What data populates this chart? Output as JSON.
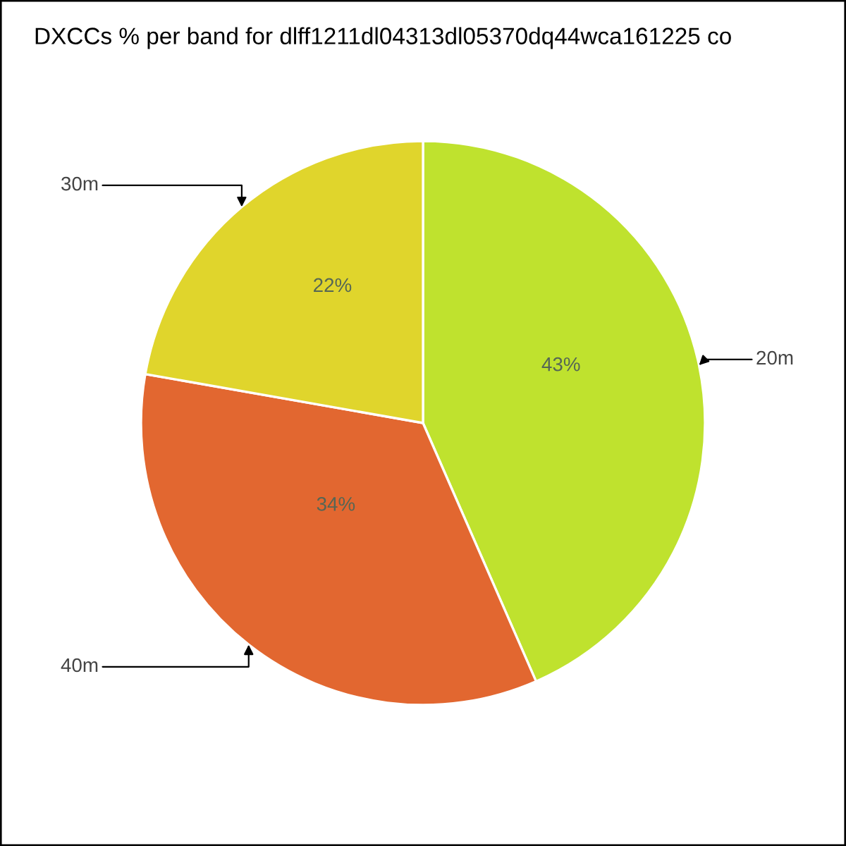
{
  "chart_data": {
    "type": "pie",
    "title": "DXCCs % per band for dlff1211dl04313dl05370dq44wca161225 co",
    "categories": [
      "20m",
      "40m",
      "30m"
    ],
    "values": [
      43,
      34,
      22
    ],
    "colors": [
      "#bfe22e",
      "#e26730",
      "#e0d52c"
    ],
    "value_labels": [
      "43%",
      "34%",
      "22%"
    ],
    "legend": false
  }
}
